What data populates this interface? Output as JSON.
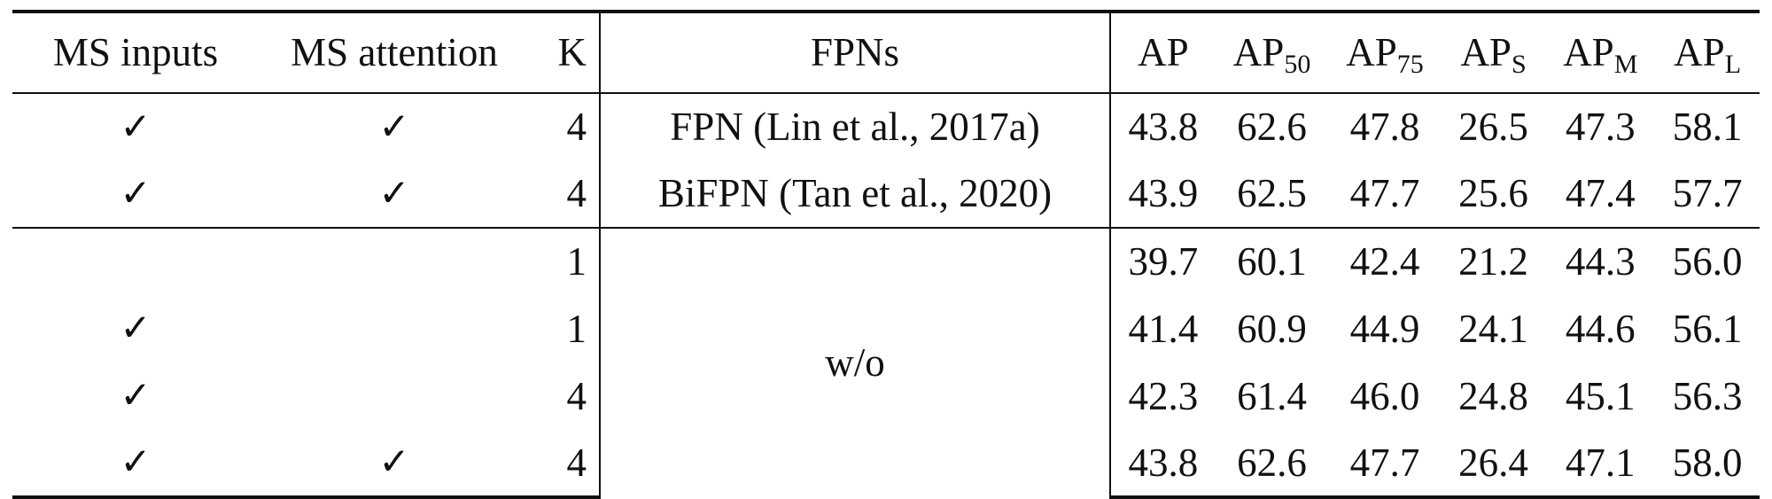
{
  "table": {
    "headers": {
      "ms_inputs": "MS inputs",
      "ms_attention": "MS attention",
      "k": "K",
      "fpns": "FPNs",
      "ap": "AP",
      "ap50_base": "AP",
      "ap50_sub": "50",
      "ap75_base": "AP",
      "ap75_sub": "75",
      "aps_base": "AP",
      "aps_sub": "S",
      "apm_base": "AP",
      "apm_sub": "M",
      "apl_base": "AP",
      "apl_sub": "L"
    },
    "check_mark": "✓",
    "rows": [
      {
        "ms_inputs": "✓",
        "ms_attention": "✓",
        "k": "4",
        "fpn": "FPN (Lin et al., 2017a)",
        "ap": "43.8",
        "ap50": "62.6",
        "ap75": "47.8",
        "aps": "26.5",
        "apm": "47.3",
        "apl": "58.1"
      },
      {
        "ms_inputs": "✓",
        "ms_attention": "✓",
        "k": "4",
        "fpn": "BiFPN (Tan et al., 2020)",
        "ap": "43.9",
        "ap50": "62.5",
        "ap75": "47.7",
        "aps": "25.6",
        "apm": "47.4",
        "apl": "57.7"
      },
      {
        "ms_inputs": "",
        "ms_attention": "",
        "k": "1",
        "fpn": "w/o",
        "ap": "39.7",
        "ap50": "60.1",
        "ap75": "42.4",
        "aps": "21.2",
        "apm": "44.3",
        "apl": "56.0"
      },
      {
        "ms_inputs": "✓",
        "ms_attention": "",
        "k": "1",
        "fpn": "",
        "ap": "41.4",
        "ap50": "60.9",
        "ap75": "44.9",
        "aps": "24.1",
        "apm": "44.6",
        "apl": "56.1"
      },
      {
        "ms_inputs": "✓",
        "ms_attention": "",
        "k": "4",
        "fpn": "",
        "ap": "42.3",
        "ap50": "61.4",
        "ap75": "46.0",
        "aps": "24.8",
        "apm": "45.1",
        "apl": "56.3"
      },
      {
        "ms_inputs": "✓",
        "ms_attention": "✓",
        "k": "4",
        "fpn": "",
        "ap": "43.8",
        "ap50": "62.6",
        "ap75": "47.7",
        "aps": "26.4",
        "apm": "47.1",
        "apl": "58.0"
      }
    ]
  }
}
